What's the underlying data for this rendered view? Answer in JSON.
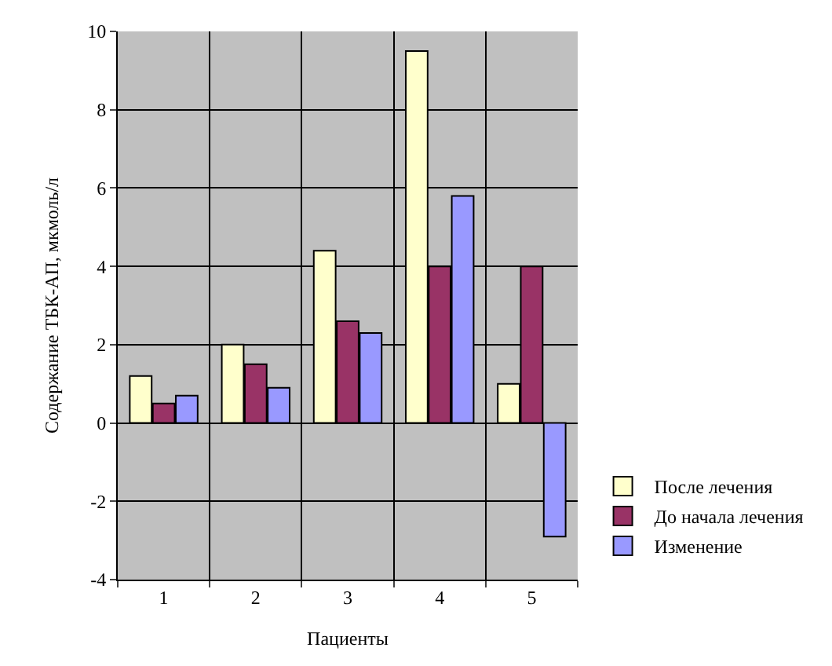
{
  "chart_data": {
    "type": "bar",
    "xlabel": "Пациенты",
    "ylabel": "Содержание ТБК-АП, мкмоль/л",
    "categories": [
      "1",
      "2",
      "3",
      "4",
      "5"
    ],
    "series": [
      {
        "name": "После лечения",
        "color": "#ffffcc",
        "values": [
          1.2,
          2.0,
          4.4,
          9.5,
          1.0
        ]
      },
      {
        "name": "До начала лечения",
        "color": "#993366",
        "values": [
          0.5,
          1.5,
          2.6,
          4.0,
          4.0
        ]
      },
      {
        "name": "Изменение",
        "color": "#9999ff",
        "values": [
          0.7,
          0.9,
          2.3,
          5.8,
          -2.9
        ]
      }
    ],
    "ylim": [
      -4,
      10
    ],
    "yticks": [
      -4,
      -2,
      0,
      2,
      4,
      6,
      8,
      10
    ],
    "grid": true,
    "legend": "bottom right"
  }
}
